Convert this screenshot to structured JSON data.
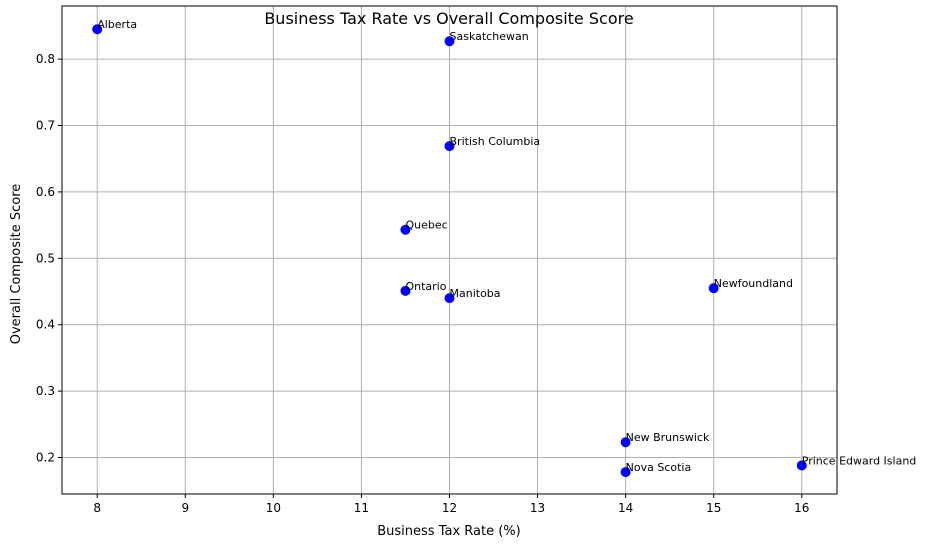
{
  "chart_data": {
    "type": "scatter",
    "title": "Business Tax Rate vs Overall Composite Score",
    "xlabel": "Business Tax Rate (%)",
    "ylabel": "Overall Composite Score",
    "xlim": [
      7.6,
      16.4
    ],
    "ylim": [
      0.145,
      0.88
    ],
    "xticks": [
      8,
      9,
      10,
      11,
      12,
      13,
      14,
      15,
      16
    ],
    "yticks": [
      0.2,
      0.3,
      0.4,
      0.5,
      0.6,
      0.7,
      0.8
    ],
    "grid": true,
    "point_color": "#0000ff",
    "points": [
      {
        "label": "Alberta",
        "x": 8,
        "y": 0.845
      },
      {
        "label": "Saskatchewan",
        "x": 12,
        "y": 0.827
      },
      {
        "label": "British Columbia",
        "x": 12,
        "y": 0.669
      },
      {
        "label": "Quebec",
        "x": 11.5,
        "y": 0.543
      },
      {
        "label": "Ontario",
        "x": 11.5,
        "y": 0.451
      },
      {
        "label": "Manitoba",
        "x": 12,
        "y": 0.44
      },
      {
        "label": "Newfoundland",
        "x": 15,
        "y": 0.455
      },
      {
        "label": "New Brunswick",
        "x": 14,
        "y": 0.223
      },
      {
        "label": "Nova Scotia",
        "x": 14,
        "y": 0.178
      },
      {
        "label": "Prince Edward Island",
        "x": 16,
        "y": 0.188
      }
    ]
  }
}
